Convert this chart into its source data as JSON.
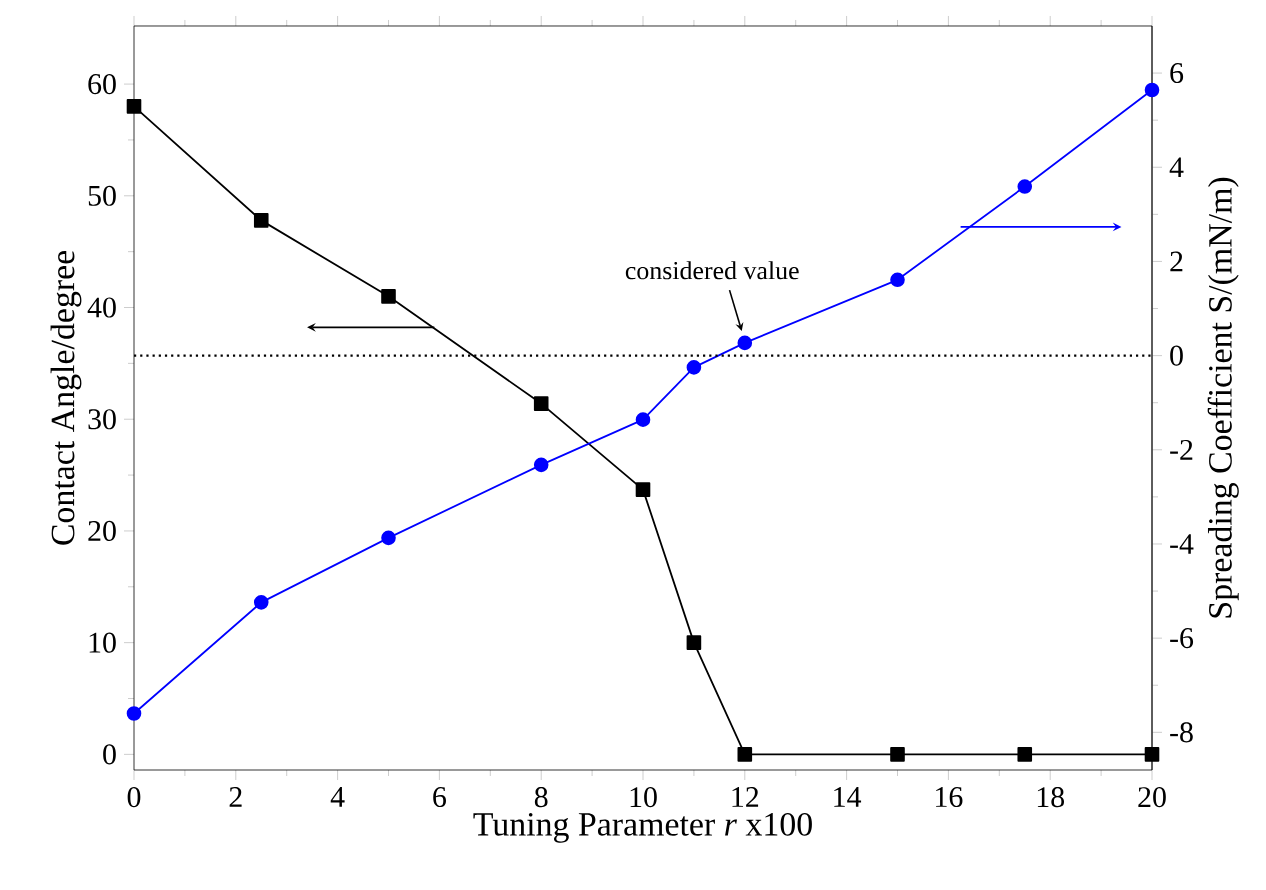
{
  "chart_data": {
    "type": "line",
    "x": [
      0,
      2.5,
      5,
      8,
      10,
      11,
      12,
      15,
      17.5,
      20
    ],
    "series": [
      {
        "color": "#000000",
        "marker": "square",
        "values": [
          58.0,
          47.8,
          41.0,
          31.4,
          23.7,
          10.0,
          0,
          0,
          0,
          0
        ]
      },
      {
        "color": "#0000ff",
        "marker": "circle",
        "axis": "y2",
        "values": [
          -7.6,
          -5.24,
          -3.87,
          -2.32,
          -1.36,
          -0.25,
          0.27,
          1.61,
          3.59,
          5.64
        ]
      }
    ],
    "xlabel": "Tuning Parameter *r* x100",
    "ylabel": "Contact Angle/degree",
    "y2label": "Spreading Coefficient S/(mN/m)",
    "xlim": [
      0,
      20
    ],
    "xticks": [
      0,
      2,
      4,
      6,
      8,
      10,
      12,
      14,
      16,
      18,
      20
    ],
    "ylim": [
      -1.4,
      65.2
    ],
    "yticks": [
      0,
      10,
      20,
      30,
      40,
      50,
      60
    ],
    "y2lim": [
      -8.8,
      7.0
    ],
    "y2ticks": [
      -8,
      -6,
      -4,
      -2,
      0,
      2,
      4,
      6
    ],
    "ref_lines": [
      {
        "axis": "y2",
        "value": 0,
        "line_style": "dotted",
        "color": "#000000"
      }
    ],
    "annotations": [
      "considered value"
    ],
    "line_style": "solid"
  }
}
